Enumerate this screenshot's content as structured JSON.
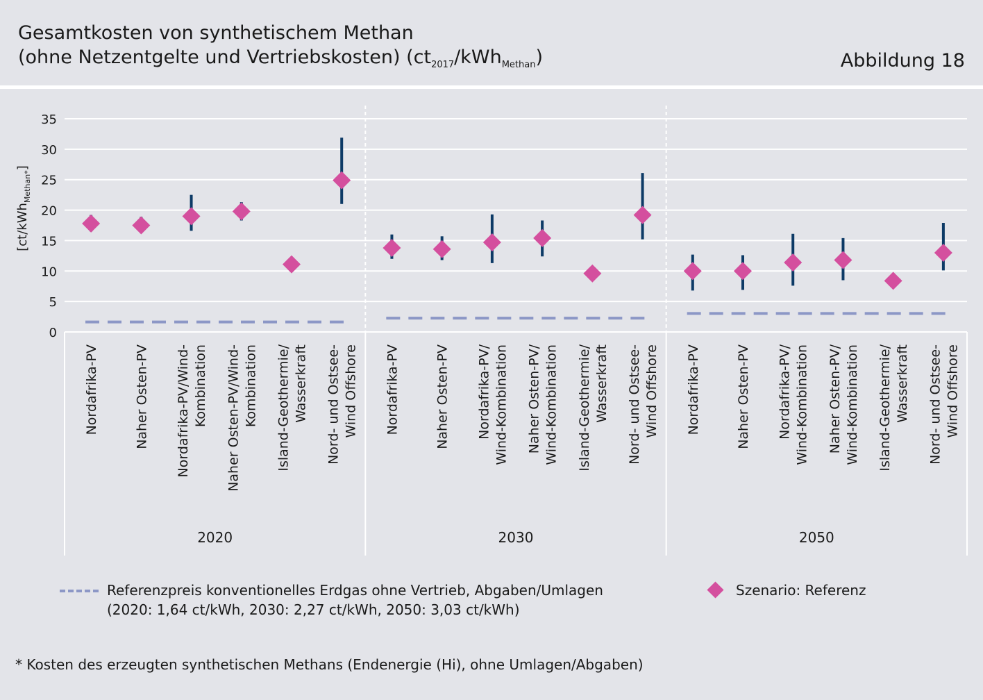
{
  "header": {
    "title_line1": "Gesamtkosten von synthetischem Methan",
    "title_line2_main": "(ohne Netzentgelte und Vertriebskosten) (ct",
    "title_line2_sub1": "2017",
    "title_line2_mid": "/kWh",
    "title_line2_sub2": "Methan",
    "title_line2_end": ")",
    "figure_label": "Abbildung 18"
  },
  "legend": {
    "reference_line1": "Referenzpreis konventionelles Erdgas ohne Vertrieb, Abgaben/Umlagen",
    "reference_line2": "(2020: 1,64 ct/kWh,  2030: 2,27 ct/kWh, 2050: 3,03 ct/kWh)",
    "scenario": "Szenario: Referenz"
  },
  "footnote": "* Kosten des erzeugten synthetischen Methans (Endenergie (Hi), ohne Umlagen/Abgaben)",
  "colors": {
    "diamond": "#d44f9e",
    "range_bar": "#0d3a66",
    "reference_dash": "#8c97c6",
    "background": "#e3e4e9",
    "grid": "#ffffff"
  },
  "chart_data": {
    "type": "scatter",
    "ylabel": "[ct/kWh",
    "ylabel_sub": "Methan*",
    "ylabel_end": "]",
    "ylim": [
      0,
      35
    ],
    "yticks": [
      0,
      5,
      10,
      15,
      20,
      25,
      30,
      35
    ],
    "grid": true,
    "groups": [
      {
        "year": "2020",
        "reference_price": 1.64,
        "categories": [
          {
            "label": [
              "Nordafrika-PV"
            ],
            "value": 17.8,
            "low": 16.5,
            "high": 19.2
          },
          {
            "label": [
              "Naher Osten-PV"
            ],
            "value": 17.5,
            "low": 16.6,
            "high": 18.9
          },
          {
            "label": [
              "Nordafrika-PV/Wind-",
              "Kombination"
            ],
            "value": 19.0,
            "low": 16.6,
            "high": 22.5
          },
          {
            "label": [
              "Naher Osten-PV/Wind-",
              "Kombination"
            ],
            "value": 19.8,
            "low": 18.3,
            "high": 21.3
          },
          {
            "label": [
              "Island-Geothermie/",
              "Wasserkraft"
            ],
            "value": 11.1,
            "low": 11.1,
            "high": 11.1
          },
          {
            "label": [
              "Nord- und Ostsee-",
              "Wind Offshore"
            ],
            "value": 24.9,
            "low": 21.0,
            "high": 31.9
          }
        ]
      },
      {
        "year": "2030",
        "reference_price": 2.27,
        "categories": [
          {
            "label": [
              "Nordafrika-PV"
            ],
            "value": 13.8,
            "low": 12.0,
            "high": 16.0
          },
          {
            "label": [
              "Naher Osten-PV"
            ],
            "value": 13.6,
            "low": 11.8,
            "high": 15.7
          },
          {
            "label": [
              "Nordafrika-PV/",
              "Wind-Kombination"
            ],
            "value": 14.7,
            "low": 11.3,
            "high": 19.3
          },
          {
            "label": [
              "Naher Osten-PV/",
              "Wind-Kombination"
            ],
            "value": 15.4,
            "low": 12.4,
            "high": 18.3
          },
          {
            "label": [
              "Island-Geothermie/",
              "Wasserkraft"
            ],
            "value": 9.6,
            "low": 9.6,
            "high": 9.6
          },
          {
            "label": [
              "Nord- und Ostsee-",
              "Wind Offshore"
            ],
            "value": 19.2,
            "low": 15.2,
            "high": 26.1
          }
        ]
      },
      {
        "year": "2050",
        "reference_price": 3.03,
        "categories": [
          {
            "label": [
              "Nordafrika-PV"
            ],
            "value": 10.0,
            "low": 6.8,
            "high": 12.7
          },
          {
            "label": [
              "Naher Osten-PV"
            ],
            "value": 10.0,
            "low": 6.9,
            "high": 12.6
          },
          {
            "label": [
              "Nordafrika-PV/",
              "Wind-Kombination"
            ],
            "value": 11.4,
            "low": 7.6,
            "high": 16.1
          },
          {
            "label": [
              "Naher Osten-PV/",
              "Wind-Kombination"
            ],
            "value": 11.8,
            "low": 8.5,
            "high": 15.4
          },
          {
            "label": [
              "Island-Geothermie/",
              "Wasserkraft"
            ],
            "value": 8.4,
            "low": 8.4,
            "high": 8.4
          },
          {
            "label": [
              "Nord- und Ostsee-",
              "Wind Offshore"
            ],
            "value": 13.0,
            "low": 10.1,
            "high": 17.9
          }
        ]
      }
    ]
  }
}
